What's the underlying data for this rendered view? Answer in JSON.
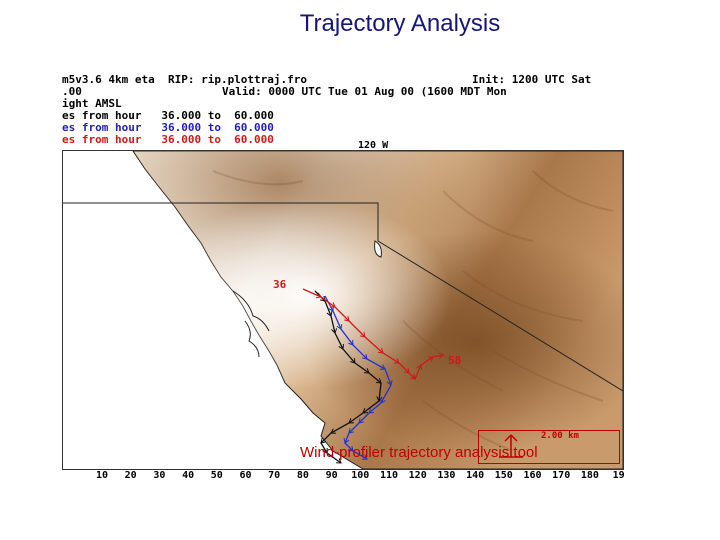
{
  "slide": {
    "title": "Trajectory Analysis"
  },
  "header": {
    "lines": [
      {
        "left": "m5v3.6 4km eta  RIP: rip.plottraj.fro",
        "right": "Init: 1200 UTC Sat",
        "color": "#000000"
      },
      {
        "left": ".00",
        "right": "Valid: 0000 UTC Tue 01 Aug 00 (1600 MDT Mon",
        "color": "#000000"
      },
      {
        "left": "ight AMSL",
        "right": "",
        "color": "#000000"
      },
      {
        "left": "es from hour   36.000 to  60.000",
        "right": "",
        "color": "#000000"
      },
      {
        "left": "es from hour   36.000 to  60.000",
        "right": "",
        "color": "#1f1fbf"
      },
      {
        "left": "es from hour   36.000 to  60.000",
        "right": "",
        "color": "#d01818"
      }
    ]
  },
  "map": {
    "longitude_label": "120 W",
    "trajectory_labels": [
      "36",
      "58"
    ],
    "colors": {
      "terrain_dark": "#8b5a2b",
      "terrain_light": "#f3e6d5",
      "trajectory_black": "#111111",
      "trajectory_blue": "#2233cc",
      "trajectory_red": "#d01818"
    }
  },
  "axis": {
    "ticks": [
      "10",
      "20",
      "30",
      "40",
      "50",
      "60",
      "70",
      "80",
      "90",
      "100",
      "110",
      "120",
      "130",
      "140",
      "150",
      "160",
      "170",
      "180",
      "19"
    ]
  },
  "scale_bar": {
    "label": "2.00 km"
  },
  "caption": {
    "text": "Wind-profiler trajectory analysis tool"
  }
}
